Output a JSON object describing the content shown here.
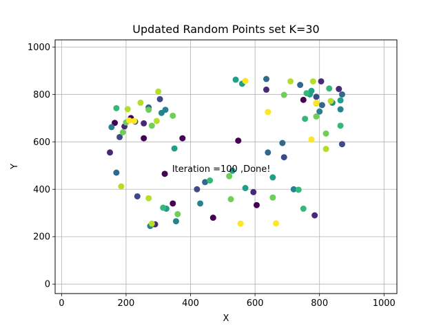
{
  "chart_data": {
    "type": "scatter",
    "title": "Updated Random Points set K=30",
    "xlabel": "X",
    "ylabel": "Y",
    "xlim": [
      -20,
      1040
    ],
    "ylim": [
      -40,
      1030
    ],
    "xticks": [
      0,
      200,
      400,
      600,
      800,
      1000
    ],
    "yticks": [
      0,
      200,
      400,
      600,
      800,
      1000
    ],
    "grid": true,
    "annotation": {
      "text": "Iteration =100 ,Done!",
      "x": 343,
      "y": 485
    },
    "colors": [
      "#440154",
      "#482878",
      "#3e4989",
      "#31688e",
      "#26828e",
      "#1f9e89",
      "#35b779",
      "#6ece58",
      "#b5de2b",
      "#fde725"
    ],
    "points": [
      {
        "x": 165,
        "y": 680,
        "c": 0
      },
      {
        "x": 255,
        "y": 615,
        "c": 0
      },
      {
        "x": 215,
        "y": 700,
        "c": 0
      },
      {
        "x": 375,
        "y": 615,
        "c": 0
      },
      {
        "x": 320,
        "y": 465,
        "c": 0
      },
      {
        "x": 345,
        "y": 340,
        "c": 0
      },
      {
        "x": 470,
        "y": 280,
        "c": 0
      },
      {
        "x": 548,
        "y": 605,
        "c": 0
      },
      {
        "x": 605,
        "y": 333,
        "c": 0
      },
      {
        "x": 750,
        "y": 777,
        "c": 0
      },
      {
        "x": 150,
        "y": 555,
        "c": 1
      },
      {
        "x": 195,
        "y": 665,
        "c": 1
      },
      {
        "x": 290,
        "y": 252,
        "c": 1
      },
      {
        "x": 635,
        "y": 820,
        "c": 1
      },
      {
        "x": 595,
        "y": 388,
        "c": 1
      },
      {
        "x": 785,
        "y": 290,
        "c": 1
      },
      {
        "x": 860,
        "y": 823,
        "c": 1
      },
      {
        "x": 805,
        "y": 855,
        "c": 1
      },
      {
        "x": 255,
        "y": 678,
        "c": 1
      },
      {
        "x": 305,
        "y": 780,
        "c": 2
      },
      {
        "x": 180,
        "y": 620,
        "c": 2
      },
      {
        "x": 235,
        "y": 370,
        "c": 2
      },
      {
        "x": 420,
        "y": 400,
        "c": 2
      },
      {
        "x": 690,
        "y": 535,
        "c": 2
      },
      {
        "x": 790,
        "y": 790,
        "c": 2
      },
      {
        "x": 870,
        "y": 590,
        "c": 2
      },
      {
        "x": 228,
        "y": 685,
        "c": 2
      },
      {
        "x": 270,
        "y": 745,
        "c": 3
      },
      {
        "x": 170,
        "y": 470,
        "c": 3
      },
      {
        "x": 445,
        "y": 430,
        "c": 3
      },
      {
        "x": 635,
        "y": 865,
        "c": 3
      },
      {
        "x": 640,
        "y": 555,
        "c": 3
      },
      {
        "x": 685,
        "y": 595,
        "c": 3
      },
      {
        "x": 808,
        "y": 755,
        "c": 3
      },
      {
        "x": 870,
        "y": 800,
        "c": 3
      },
      {
        "x": 740,
        "y": 840,
        "c": 3
      },
      {
        "x": 310,
        "y": 722,
        "c": 4
      },
      {
        "x": 155,
        "y": 662,
        "c": 4
      },
      {
        "x": 355,
        "y": 265,
        "c": 4
      },
      {
        "x": 430,
        "y": 340,
        "c": 4
      },
      {
        "x": 275,
        "y": 245,
        "c": 4
      },
      {
        "x": 720,
        "y": 400,
        "c": 4
      },
      {
        "x": 800,
        "y": 728,
        "c": 4
      },
      {
        "x": 840,
        "y": 765,
        "c": 4
      },
      {
        "x": 865,
        "y": 737,
        "c": 4
      },
      {
        "x": 322,
        "y": 735,
        "c": 4
      },
      {
        "x": 350,
        "y": 572,
        "c": 5
      },
      {
        "x": 560,
        "y": 845,
        "c": 5
      },
      {
        "x": 540,
        "y": 862,
        "c": 5
      },
      {
        "x": 655,
        "y": 450,
        "c": 5
      },
      {
        "x": 570,
        "y": 405,
        "c": 5
      },
      {
        "x": 530,
        "y": 478,
        "c": 5
      },
      {
        "x": 775,
        "y": 815,
        "c": 5
      },
      {
        "x": 770,
        "y": 800,
        "c": 5
      },
      {
        "x": 865,
        "y": 775,
        "c": 5
      },
      {
        "x": 325,
        "y": 318,
        "c": 5
      },
      {
        "x": 170,
        "y": 742,
        "c": 6
      },
      {
        "x": 315,
        "y": 322,
        "c": 6
      },
      {
        "x": 460,
        "y": 437,
        "c": 6
      },
      {
        "x": 735,
        "y": 398,
        "c": 6
      },
      {
        "x": 750,
        "y": 318,
        "c": 6
      },
      {
        "x": 755,
        "y": 697,
        "c": 6
      },
      {
        "x": 760,
        "y": 805,
        "c": 6
      },
      {
        "x": 865,
        "y": 668,
        "c": 6
      },
      {
        "x": 830,
        "y": 825,
        "c": 6
      },
      {
        "x": 190,
        "y": 640,
        "c": 7
      },
      {
        "x": 200,
        "y": 682,
        "c": 7
      },
      {
        "x": 270,
        "y": 735,
        "c": 7
      },
      {
        "x": 280,
        "y": 668,
        "c": 7
      },
      {
        "x": 345,
        "y": 710,
        "c": 7
      },
      {
        "x": 520,
        "y": 455,
        "c": 7
      },
      {
        "x": 525,
        "y": 358,
        "c": 7
      },
      {
        "x": 655,
        "y": 365,
        "c": 7
      },
      {
        "x": 690,
        "y": 798,
        "c": 7
      },
      {
        "x": 820,
        "y": 635,
        "c": 7
      },
      {
        "x": 790,
        "y": 707,
        "c": 7
      },
      {
        "x": 360,
        "y": 295,
        "c": 7
      },
      {
        "x": 205,
        "y": 738,
        "c": 8
      },
      {
        "x": 245,
        "y": 765,
        "c": 8
      },
      {
        "x": 295,
        "y": 688,
        "c": 8
      },
      {
        "x": 300,
        "y": 812,
        "c": 8
      },
      {
        "x": 270,
        "y": 362,
        "c": 8
      },
      {
        "x": 710,
        "y": 855,
        "c": 8
      },
      {
        "x": 780,
        "y": 855,
        "c": 8
      },
      {
        "x": 835,
        "y": 772,
        "c": 8
      },
      {
        "x": 820,
        "y": 570,
        "c": 8
      },
      {
        "x": 790,
        "y": 762,
        "c": 8
      },
      {
        "x": 280,
        "y": 255,
        "c": 8
      },
      {
        "x": 185,
        "y": 412,
        "c": 8
      },
      {
        "x": 210,
        "y": 690,
        "c": 9
      },
      {
        "x": 225,
        "y": 688,
        "c": 9
      },
      {
        "x": 570,
        "y": 857,
        "c": 9
      },
      {
        "x": 640,
        "y": 726,
        "c": 9
      },
      {
        "x": 555,
        "y": 255,
        "c": 9
      },
      {
        "x": 665,
        "y": 256,
        "c": 9
      },
      {
        "x": 775,
        "y": 610,
        "c": 9
      },
      {
        "x": 790,
        "y": 765,
        "c": 9
      }
    ]
  }
}
